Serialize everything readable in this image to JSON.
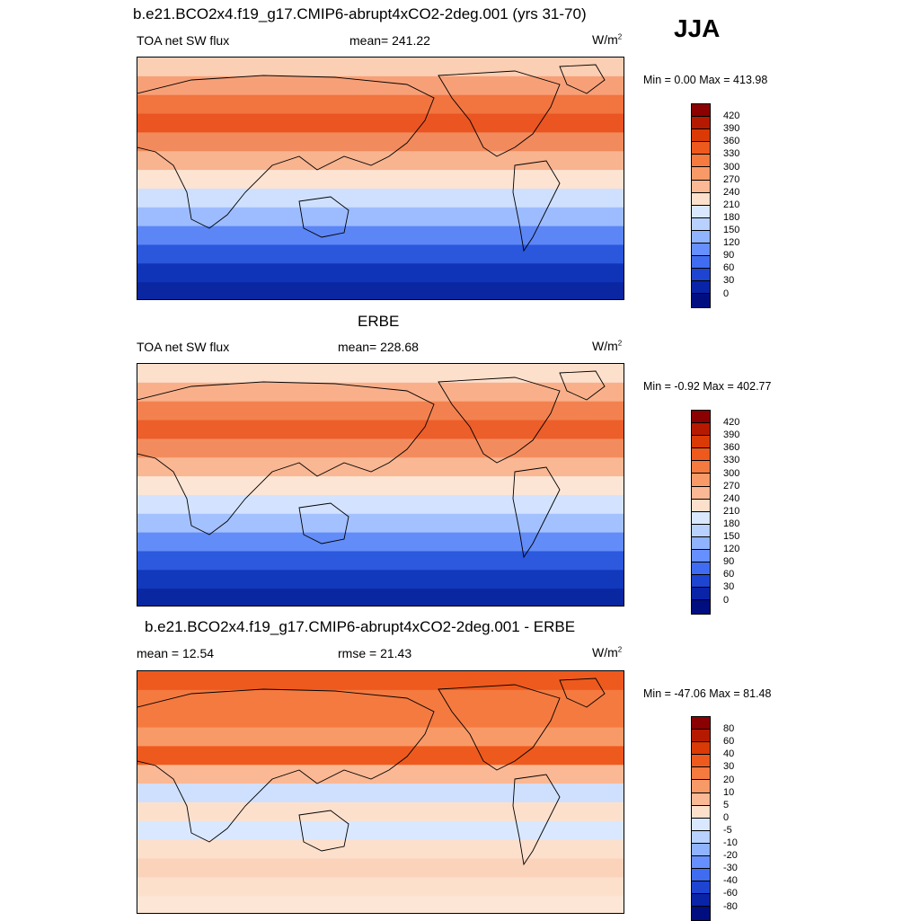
{
  "season": "JJA",
  "panels": [
    {
      "title": "b.e21.BCO2x4.f19_g17.CMIP6-abrupt4xCO2-2deg.001 (yrs 31-70)",
      "left_label": "TOA net SW flux",
      "center_label": "mean= 241.22",
      "units": "W/m",
      "units_sup": "2",
      "minmax": "Min =   0.00 Max = 413.98",
      "colorbar": {
        "ticks": [
          "420",
          "390",
          "360",
          "330",
          "300",
          "270",
          "240",
          "210",
          "180",
          "150",
          "120",
          "90",
          "60",
          "30",
          "0"
        ],
        "colors": [
          "#8b0000",
          "#b51a00",
          "#d93a06",
          "#ee5a1d",
          "#f47a40",
          "#f89a68",
          "#fbb894",
          "#fde0cc",
          "#d9e8ff",
          "#b8d1ff",
          "#8fb3ff",
          "#6690ff",
          "#3f6cf0",
          "#1e44d2",
          "#0a24a8",
          "#000e80"
        ]
      },
      "bands": [
        "#fbcfb4",
        "#f7a078",
        "#f2743f",
        "#ea5522",
        "#f18a5c",
        "#f8b38f",
        "#fde3d2",
        "#cfe0ff",
        "#9dbcff",
        "#5c86f5",
        "#2a57dc",
        "#0f34b8",
        "#0a26a0"
      ]
    },
    {
      "title": "ERBE",
      "left_label": "TOA net SW flux",
      "center_label": "mean= 228.68",
      "units": "W/m",
      "units_sup": "2",
      "minmax": "Min =  -0.92 Max = 402.77",
      "colorbar": {
        "ticks": [
          "420",
          "390",
          "360",
          "330",
          "300",
          "270",
          "240",
          "210",
          "180",
          "150",
          "120",
          "90",
          "60",
          "30",
          "0"
        ],
        "colors": [
          "#8b0000",
          "#b51a00",
          "#d93a06",
          "#ee5a1d",
          "#f47a40",
          "#f89a68",
          "#fbb894",
          "#fde0cc",
          "#d9e8ff",
          "#b8d1ff",
          "#8fb3ff",
          "#6690ff",
          "#3f6cf0",
          "#1e44d2",
          "#0a24a8",
          "#000e80"
        ]
      },
      "bands": [
        "#fde0cc",
        "#f9b08a",
        "#f38150",
        "#ec5e2a",
        "#f28c5e",
        "#f9b793",
        "#fde5d5",
        "#d3e3ff",
        "#a3c1ff",
        "#628cf7",
        "#2c59dd",
        "#1238bb",
        "#0a27a2"
      ]
    },
    {
      "title": "b.e21.BCO2x4.f19_g17.CMIP6-abrupt4xCO2-2deg.001 - ERBE",
      "left_label": "mean =  12.54",
      "center_label": "rmse =  21.43",
      "units": "W/m",
      "units_sup": "2",
      "minmax": "Min = -47.06 Max =  81.48",
      "colorbar": {
        "ticks": [
          "80",
          "60",
          "40",
          "30",
          "20",
          "10",
          "5",
          "0",
          "-5",
          "-10",
          "-20",
          "-30",
          "-40",
          "-60",
          "-80"
        ],
        "colors": [
          "#8b0000",
          "#b51a00",
          "#d93a06",
          "#ee5a1d",
          "#f47a40",
          "#f89a68",
          "#fbb894",
          "#fde0cc",
          "#d9e8ff",
          "#b8d1ff",
          "#8fb3ff",
          "#6690ff",
          "#3f6cf0",
          "#1e44d2",
          "#0a24a8",
          "#000e80"
        ]
      },
      "bands": [
        "#ee5a1d",
        "#f47a40",
        "#f47a40",
        "#f89a68",
        "#ee5a1d",
        "#fbb894",
        "#cfe0ff",
        "#fde0cc",
        "#d9e8ff",
        "#fde0cc",
        "#fbd3bb",
        "#fde0cc",
        "#fde6d6"
      ]
    }
  ]
}
